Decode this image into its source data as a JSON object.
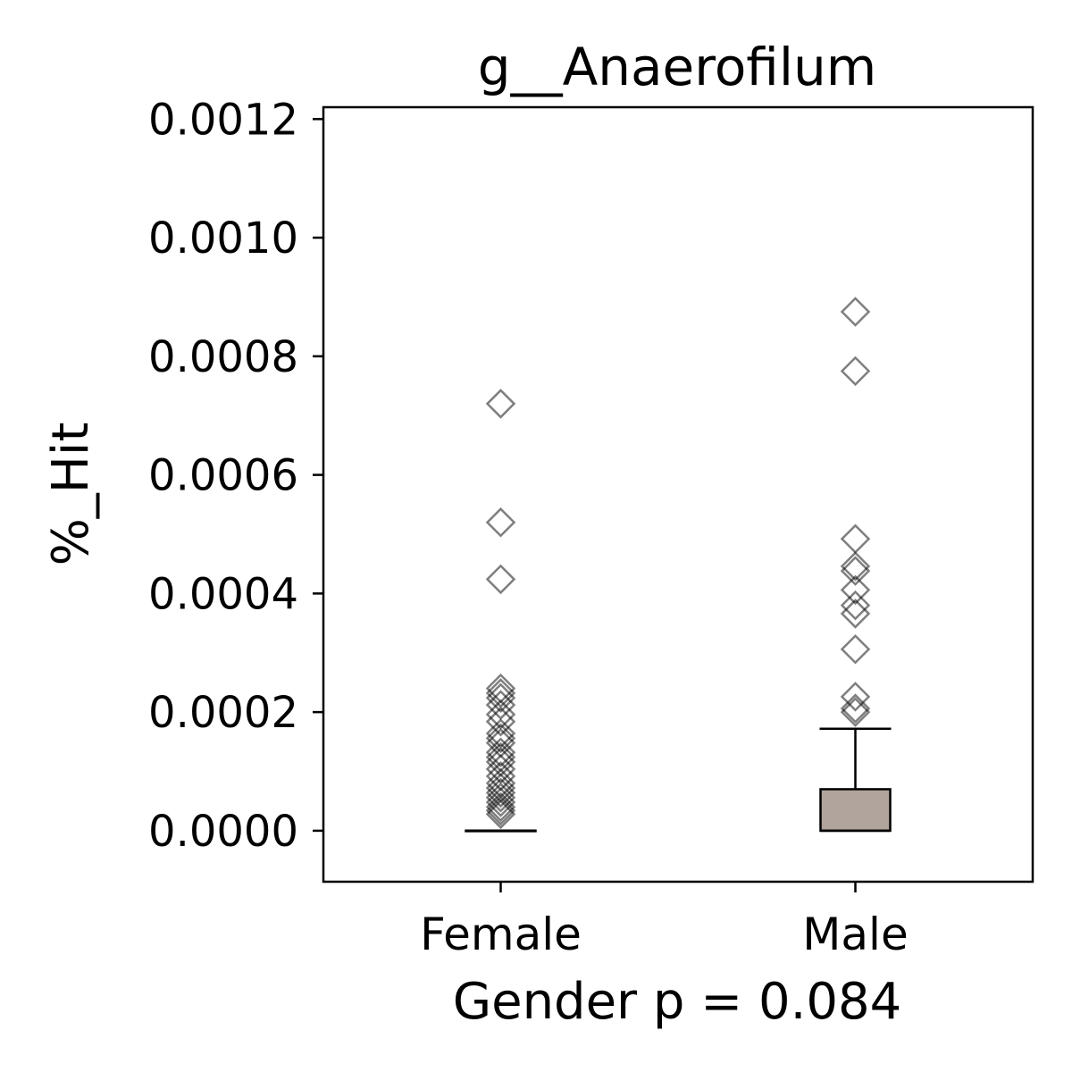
{
  "chart_data": {
    "type": "box",
    "title": "g__Anaerofilum",
    "xlabel": "Gender p = 0.084",
    "ylabel": "%_Hit",
    "categories": [
      "Female",
      "Male"
    ],
    "ylim": [
      -8.6e-05,
      0.00122
    ],
    "yticks": [
      0.0,
      0.0002,
      0.0004,
      0.0006,
      0.0008,
      0.001,
      0.0012
    ],
    "ytick_labels": [
      "0.0000",
      "0.0002",
      "0.0004",
      "0.0006",
      "0.0008",
      "0.0010",
      "0.0012"
    ],
    "grid": false,
    "box_color": "#b0a49c",
    "outlier_color": "#000000",
    "groups": [
      {
        "name": "Female",
        "whisker_low": 0.0,
        "q1": 0.0,
        "median": 0.0,
        "q3": 0.0,
        "whisker_high": 0.0,
        "outliers": [
          0.00072,
          0.00052,
          0.000424,
          0.00024,
          0.000232,
          0.000224,
          0.000212,
          0.000196,
          0.000184,
          0.000164,
          0.000156,
          0.000148,
          0.000132,
          0.000124,
          0.000116,
          0.000104,
          9.2e-05,
          8e-05,
          7.2e-05,
          6.4e-05,
          5.6e-05,
          4.8e-05,
          4e-05,
          3.4e-05,
          2.8e-05
        ]
      },
      {
        "name": "Male",
        "whisker_low": 0.0,
        "q1": 0.0,
        "median": 0.0,
        "q3": 7e-05,
        "whisker_high": 0.000172,
        "outliers": [
          0.000875,
          0.000775,
          0.000492,
          0.000446,
          0.000438,
          0.000406,
          0.00038,
          0.000366,
          0.000306,
          0.000226,
          0.000206,
          0.0002
        ]
      }
    ]
  }
}
